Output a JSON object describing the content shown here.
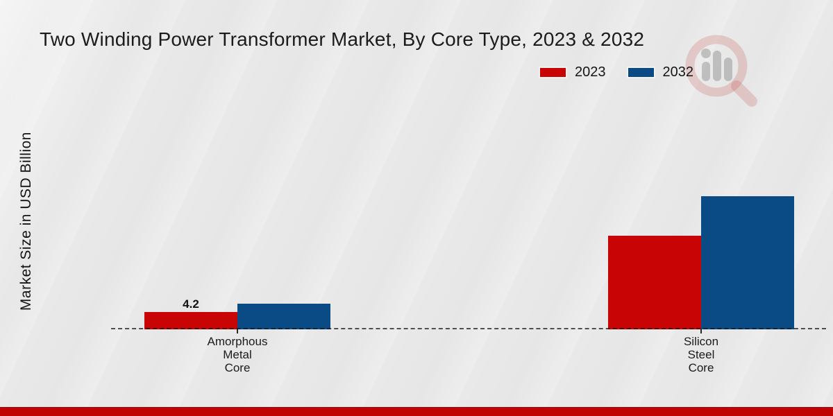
{
  "title": "Two Winding Power Transformer Market, By Core Type, 2023 & 2032",
  "chart_data": {
    "type": "bar",
    "title": "Two Winding Power Transformer Market, By Core Type, 2023 & 2032",
    "ylabel": "Market Size in USD Billion",
    "xlabel": "",
    "categories": [
      "Amorphous\nMetal\nCore",
      "Silicon\nSteel\nCore"
    ],
    "series": [
      {
        "name": "2023",
        "color": "#c80404",
        "values": [
          4.2,
          22.7
        ]
      },
      {
        "name": "2032",
        "color": "#0a4b85",
        "values": [
          6.2,
          32.3
        ]
      }
    ],
    "value_labels": [
      {
        "series_index": 0,
        "category_index": 0,
        "text": "4.2"
      }
    ],
    "baseline_style": "dashed",
    "grid": false,
    "legend_position": "top-right"
  },
  "icons": {
    "watermark": "magnifier-bar-chart-logo"
  },
  "colors": {
    "bar_2023": "#c80404",
    "bar_2032": "#0a4b85",
    "footer_band": "#c00404",
    "background": "#e9e9e9",
    "baseline": "#121212"
  }
}
